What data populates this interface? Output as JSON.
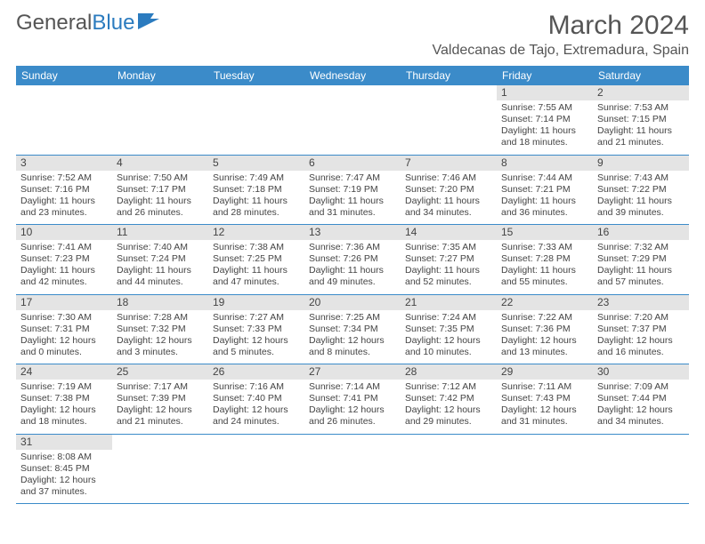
{
  "logo": {
    "text1": "General",
    "text2": "Blue"
  },
  "title": "March 2024",
  "location": "Valdecanas de Tajo, Extremadura, Spain",
  "colors": {
    "header_bg": "#3b8bc9",
    "header_fg": "#ffffff",
    "rule": "#3b8bc9",
    "dayrow_bg": "#e4e4e4"
  },
  "day_headers": [
    "Sunday",
    "Monday",
    "Tuesday",
    "Wednesday",
    "Thursday",
    "Friday",
    "Saturday"
  ],
  "weeks": [
    [
      null,
      null,
      null,
      null,
      null,
      {
        "n": "1",
        "sunrise": "Sunrise: 7:55 AM",
        "sunset": "Sunset: 7:14 PM",
        "daylight": "Daylight: 11 hours and 18 minutes."
      },
      {
        "n": "2",
        "sunrise": "Sunrise: 7:53 AM",
        "sunset": "Sunset: 7:15 PM",
        "daylight": "Daylight: 11 hours and 21 minutes."
      }
    ],
    [
      {
        "n": "3",
        "sunrise": "Sunrise: 7:52 AM",
        "sunset": "Sunset: 7:16 PM",
        "daylight": "Daylight: 11 hours and 23 minutes."
      },
      {
        "n": "4",
        "sunrise": "Sunrise: 7:50 AM",
        "sunset": "Sunset: 7:17 PM",
        "daylight": "Daylight: 11 hours and 26 minutes."
      },
      {
        "n": "5",
        "sunrise": "Sunrise: 7:49 AM",
        "sunset": "Sunset: 7:18 PM",
        "daylight": "Daylight: 11 hours and 28 minutes."
      },
      {
        "n": "6",
        "sunrise": "Sunrise: 7:47 AM",
        "sunset": "Sunset: 7:19 PM",
        "daylight": "Daylight: 11 hours and 31 minutes."
      },
      {
        "n": "7",
        "sunrise": "Sunrise: 7:46 AM",
        "sunset": "Sunset: 7:20 PM",
        "daylight": "Daylight: 11 hours and 34 minutes."
      },
      {
        "n": "8",
        "sunrise": "Sunrise: 7:44 AM",
        "sunset": "Sunset: 7:21 PM",
        "daylight": "Daylight: 11 hours and 36 minutes."
      },
      {
        "n": "9",
        "sunrise": "Sunrise: 7:43 AM",
        "sunset": "Sunset: 7:22 PM",
        "daylight": "Daylight: 11 hours and 39 minutes."
      }
    ],
    [
      {
        "n": "10",
        "sunrise": "Sunrise: 7:41 AM",
        "sunset": "Sunset: 7:23 PM",
        "daylight": "Daylight: 11 hours and 42 minutes."
      },
      {
        "n": "11",
        "sunrise": "Sunrise: 7:40 AM",
        "sunset": "Sunset: 7:24 PM",
        "daylight": "Daylight: 11 hours and 44 minutes."
      },
      {
        "n": "12",
        "sunrise": "Sunrise: 7:38 AM",
        "sunset": "Sunset: 7:25 PM",
        "daylight": "Daylight: 11 hours and 47 minutes."
      },
      {
        "n": "13",
        "sunrise": "Sunrise: 7:36 AM",
        "sunset": "Sunset: 7:26 PM",
        "daylight": "Daylight: 11 hours and 49 minutes."
      },
      {
        "n": "14",
        "sunrise": "Sunrise: 7:35 AM",
        "sunset": "Sunset: 7:27 PM",
        "daylight": "Daylight: 11 hours and 52 minutes."
      },
      {
        "n": "15",
        "sunrise": "Sunrise: 7:33 AM",
        "sunset": "Sunset: 7:28 PM",
        "daylight": "Daylight: 11 hours and 55 minutes."
      },
      {
        "n": "16",
        "sunrise": "Sunrise: 7:32 AM",
        "sunset": "Sunset: 7:29 PM",
        "daylight": "Daylight: 11 hours and 57 minutes."
      }
    ],
    [
      {
        "n": "17",
        "sunrise": "Sunrise: 7:30 AM",
        "sunset": "Sunset: 7:31 PM",
        "daylight": "Daylight: 12 hours and 0 minutes."
      },
      {
        "n": "18",
        "sunrise": "Sunrise: 7:28 AM",
        "sunset": "Sunset: 7:32 PM",
        "daylight": "Daylight: 12 hours and 3 minutes."
      },
      {
        "n": "19",
        "sunrise": "Sunrise: 7:27 AM",
        "sunset": "Sunset: 7:33 PM",
        "daylight": "Daylight: 12 hours and 5 minutes."
      },
      {
        "n": "20",
        "sunrise": "Sunrise: 7:25 AM",
        "sunset": "Sunset: 7:34 PM",
        "daylight": "Daylight: 12 hours and 8 minutes."
      },
      {
        "n": "21",
        "sunrise": "Sunrise: 7:24 AM",
        "sunset": "Sunset: 7:35 PM",
        "daylight": "Daylight: 12 hours and 10 minutes."
      },
      {
        "n": "22",
        "sunrise": "Sunrise: 7:22 AM",
        "sunset": "Sunset: 7:36 PM",
        "daylight": "Daylight: 12 hours and 13 minutes."
      },
      {
        "n": "23",
        "sunrise": "Sunrise: 7:20 AM",
        "sunset": "Sunset: 7:37 PM",
        "daylight": "Daylight: 12 hours and 16 minutes."
      }
    ],
    [
      {
        "n": "24",
        "sunrise": "Sunrise: 7:19 AM",
        "sunset": "Sunset: 7:38 PM",
        "daylight": "Daylight: 12 hours and 18 minutes."
      },
      {
        "n": "25",
        "sunrise": "Sunrise: 7:17 AM",
        "sunset": "Sunset: 7:39 PM",
        "daylight": "Daylight: 12 hours and 21 minutes."
      },
      {
        "n": "26",
        "sunrise": "Sunrise: 7:16 AM",
        "sunset": "Sunset: 7:40 PM",
        "daylight": "Daylight: 12 hours and 24 minutes."
      },
      {
        "n": "27",
        "sunrise": "Sunrise: 7:14 AM",
        "sunset": "Sunset: 7:41 PM",
        "daylight": "Daylight: 12 hours and 26 minutes."
      },
      {
        "n": "28",
        "sunrise": "Sunrise: 7:12 AM",
        "sunset": "Sunset: 7:42 PM",
        "daylight": "Daylight: 12 hours and 29 minutes."
      },
      {
        "n": "29",
        "sunrise": "Sunrise: 7:11 AM",
        "sunset": "Sunset: 7:43 PM",
        "daylight": "Daylight: 12 hours and 31 minutes."
      },
      {
        "n": "30",
        "sunrise": "Sunrise: 7:09 AM",
        "sunset": "Sunset: 7:44 PM",
        "daylight": "Daylight: 12 hours and 34 minutes."
      }
    ],
    [
      {
        "n": "31",
        "sunrise": "Sunrise: 8:08 AM",
        "sunset": "Sunset: 8:45 PM",
        "daylight": "Daylight: 12 hours and 37 minutes."
      },
      null,
      null,
      null,
      null,
      null,
      null
    ]
  ]
}
